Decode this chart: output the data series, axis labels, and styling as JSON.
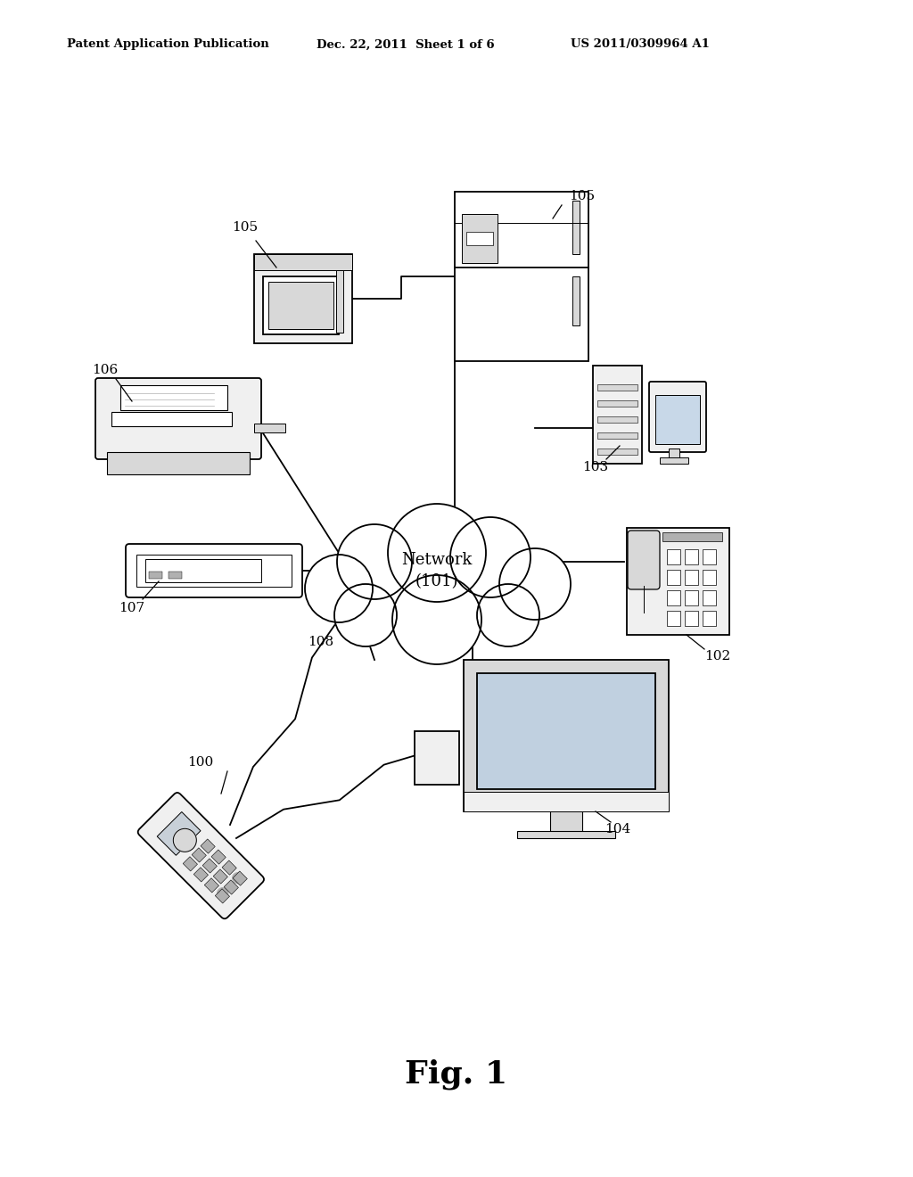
{
  "bg_color": "#ffffff",
  "header_left": "Patent Application Publication",
  "header_mid": "Dec. 22, 2011  Sheet 1 of 6",
  "header_right": "US 2011/0309964 A1",
  "fig_label": "Fig. 1",
  "network_label": "Network\n(101)",
  "lw": 1.3
}
